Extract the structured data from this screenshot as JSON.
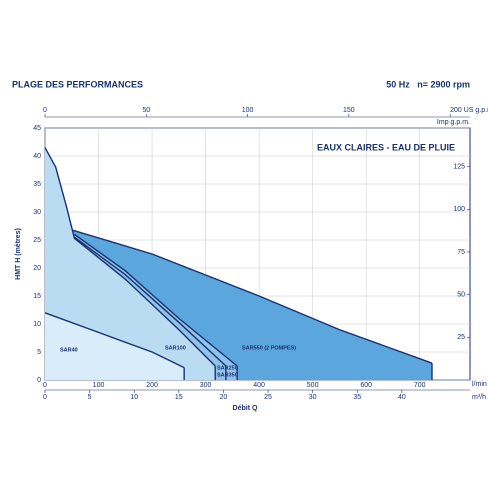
{
  "chart_data": {
    "type": "area",
    "title": "PLAGE DES PERFORMANCES",
    "subtitle": "50 Hz   n= 2900 rpm",
    "annotation": "EAUX CLAIRES - EAU DE PLUIE",
    "x_label": "Débit Q",
    "y_label": "HMT H (mètres)",
    "x_unit_label": "l/min",
    "xlim": [
      0,
      794
    ],
    "xticks": [
      0,
      100,
      200,
      300,
      400,
      500,
      600,
      700
    ],
    "ylim": [
      0,
      45
    ],
    "yticks": [
      0,
      5,
      10,
      15,
      20,
      25,
      30,
      35,
      40,
      45
    ],
    "x2lim": [
      0,
      209.8
    ],
    "x2ticks": [
      0,
      50,
      100,
      150,
      {
        "value": 200,
        "label": "200 US g.p.m."
      }
    ],
    "x3_label": "Imp g.p.m.",
    "x4lim": [
      0,
      47.64
    ],
    "x4ticks": [
      0,
      5,
      10,
      15,
      20,
      25,
      30,
      35,
      40
    ],
    "x4_label": "m³/h",
    "y2lim": [
      0,
      147.6
    ],
    "y2ticks": [
      25,
      50,
      75,
      100,
      125
    ],
    "grid": true,
    "series": [
      {
        "name": "SAR550 (2 POMPES)",
        "color": "#5ba6dd",
        "x": [
          50,
          200,
          400,
          550,
          700,
          723
        ],
        "values": [
          26.8,
          22.5,
          15,
          9,
          3.8,
          3
        ]
      },
      {
        "name": "SAR350",
        "color": "#8ec4ea",
        "x": [
          55,
          150,
          250,
          359
        ],
        "values": [
          26,
          19.5,
          11,
          2.5
        ]
      },
      {
        "name": "SAR250",
        "color": "#8ec4ea",
        "x": [
          55,
          150,
          250,
          338
        ],
        "values": [
          25.5,
          18.8,
          10.3,
          2.5
        ]
      },
      {
        "name": "SAR100",
        "color": "#badcf3",
        "x": [
          0,
          20,
          40,
          55,
          150,
          250,
          318
        ],
        "values": [
          41.5,
          38,
          31,
          25.3,
          18,
          9,
          2.5
        ]
      },
      {
        "name": "SAR40",
        "color": "#d8ecf9",
        "x": [
          0,
          100,
          200,
          260
        ],
        "values": [
          12,
          8.5,
          5,
          2.2
        ]
      }
    ]
  }
}
